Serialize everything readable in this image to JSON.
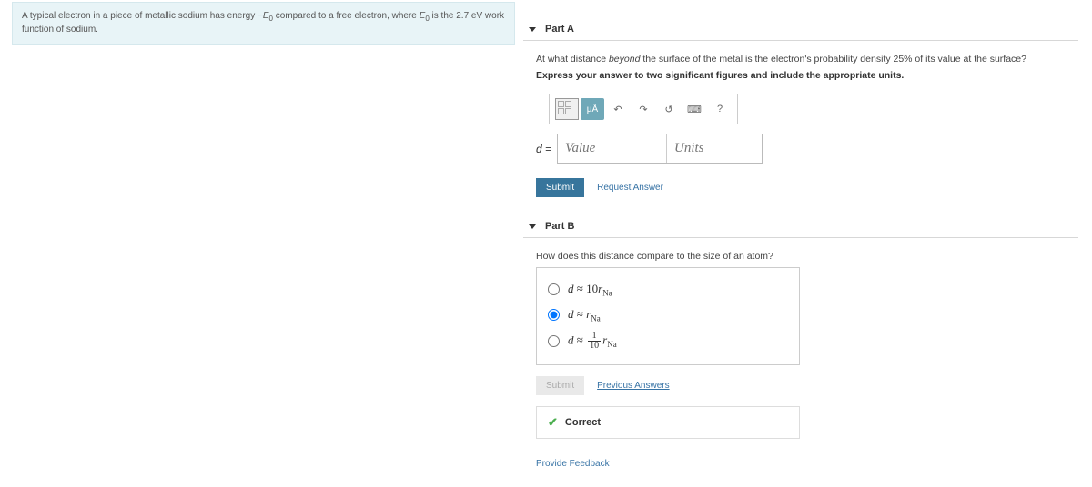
{
  "problem": {
    "text_pre": "A typical electron in a piece of metallic sodium has energy ",
    "var1": "−E",
    "sub1": "0",
    "text_mid": " compared to a free electron, where ",
    "var2": "E",
    "sub2": "0",
    "text_post": " is the 2.7 eV work function of sodium."
  },
  "partA": {
    "header": "Part A",
    "question_pre": "At what distance ",
    "question_ital": "beyond",
    "question_post": " the surface of the metal is the electron's probability density 25% of its value at the surface?",
    "instructions": "Express your answer to two significant figures and include the appropriate units.",
    "toolbar": {
      "mu_label": "μÅ",
      "help": "?"
    },
    "answer_label": "d =",
    "value_placeholder": "Value",
    "units_placeholder": "Units",
    "submit_label": "Submit",
    "request_answer": "Request Answer"
  },
  "partB": {
    "header": "Part B",
    "question": "How does this distance compare to the size of an atom?",
    "options": [
      {
        "html": "<span class='v'>d</span> ≈ 10<span class='v'>r</span><span class='sub'>Na</span>",
        "checked": false
      },
      {
        "html": "<span class='v'>d</span> ≈ <span class='v'>r</span><span class='sub'>Na</span>",
        "checked": true
      },
      {
        "html": "<span class='v'>d</span> ≈ <span class='frac'><span class='n'>1</span><span class='d'>10</span></span><span class='v'>r</span><span class='sub'>Na</span>",
        "checked": false
      }
    ],
    "submit_label": "Submit",
    "previous_answers": "Previous Answers",
    "feedback": "Correct"
  },
  "provide_feedback": "Provide Feedback"
}
